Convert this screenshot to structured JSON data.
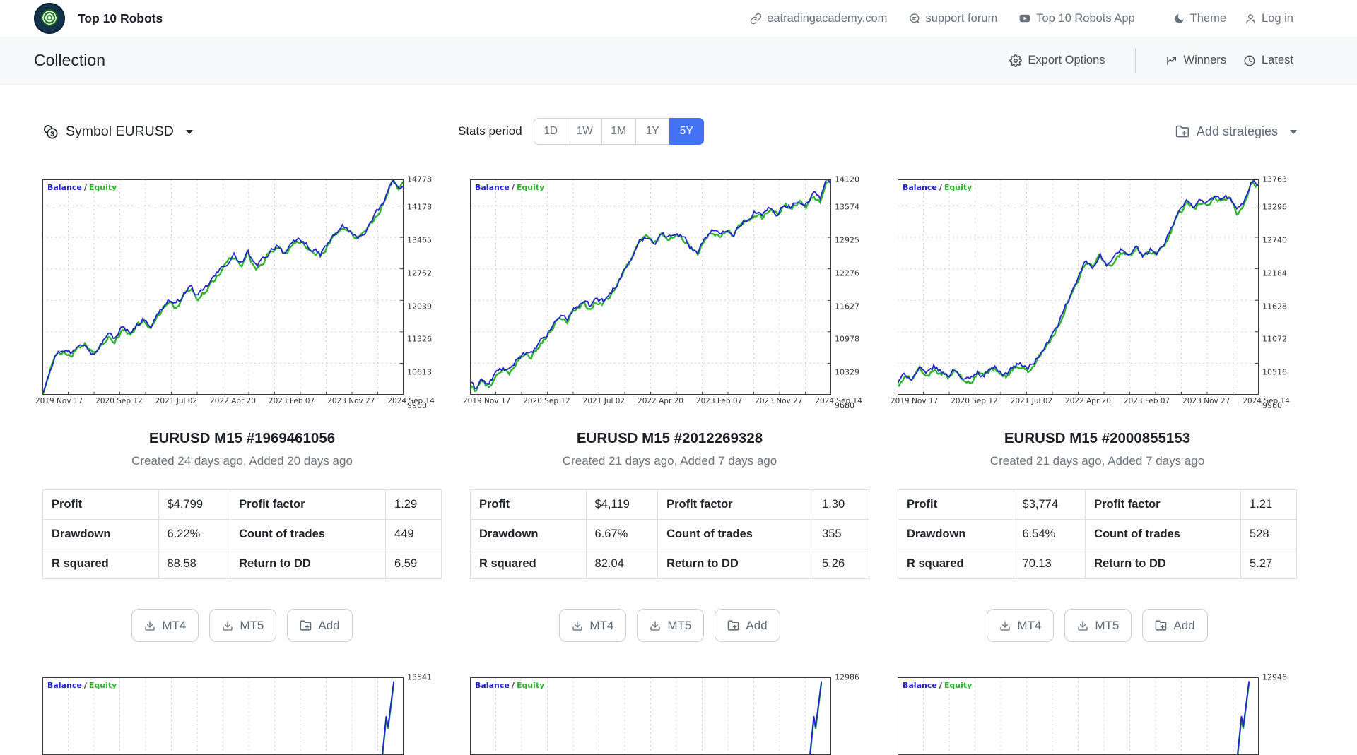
{
  "theme": {
    "accent": "#4372f4",
    "balance": "#2323cd",
    "equity": "#2db52d",
    "grid": "#d0d0d0",
    "frame": "#3a3a3a"
  },
  "header": {
    "brand": "Top 10 Robots",
    "nav": [
      {
        "label": "eatradingacademy.com",
        "icon": "link-icon"
      },
      {
        "label": "support forum",
        "icon": "chat-icon"
      },
      {
        "label": "Top 10 Robots App",
        "icon": "youtube-icon"
      }
    ],
    "theme_label": "Theme",
    "login_label": "Log in"
  },
  "toolbar": {
    "title": "Collection",
    "export_label": "Export Options",
    "winners_label": "Winners",
    "latest_label": "Latest"
  },
  "filters": {
    "symbol_label": "Symbol EURUSD",
    "stats_period_label": "Stats period",
    "periods": [
      "1D",
      "1W",
      "1M",
      "1Y",
      "5Y"
    ],
    "selected_period": "5Y",
    "add_strategies_label": "Add strategies"
  },
  "chart_legend": {
    "balance": "Balance",
    "separator": "/",
    "equity": "Equity"
  },
  "card_buttons": {
    "mt4": "MT4",
    "mt5": "MT5",
    "add": "Add"
  },
  "cards": [
    {
      "title": "EURUSD M15 #1969461056",
      "subtitle": "Created 24 days ago, Added 20 days ago",
      "stats": [
        {
          "c0": "Profit",
          "c1": "$4,799",
          "c2": "Profit factor",
          "c3": "1.29"
        },
        {
          "c0": "Drawdown",
          "c1": "6.22%",
          "c2": "Count of trades",
          "c3": "449"
        },
        {
          "c0": "R squared",
          "c1": "88.58",
          "c2": "Return to DD",
          "c3": "6.59"
        }
      ],
      "chart_data": {
        "type": "line",
        "legend": [
          "Balance",
          "Equity"
        ],
        "ylim": [
          9900,
          14778
        ],
        "yticks": [
          14778,
          14178,
          13465,
          12752,
          12039,
          11326,
          10613,
          9900
        ],
        "xlabels": [
          "2019 Nov 17",
          "2020 Sep 12",
          "2021 Jul 02",
          "2022 Apr 20",
          "2023 Feb 07",
          "2023 Nov 27",
          "2024 Sep 14"
        ],
        "series": [
          {
            "name": "Balance",
            "waypoints": [
              [
                0,
                9940
              ],
              [
                2,
                10500
              ],
              [
                4,
                10850
              ],
              [
                6,
                10950
              ],
              [
                8,
                10820
              ],
              [
                10,
                11050
              ],
              [
                12,
                11120
              ],
              [
                14,
                10830
              ],
              [
                16,
                11000
              ],
              [
                18,
                11280
              ],
              [
                20,
                11180
              ],
              [
                22,
                11420
              ],
              [
                24,
                11300
              ],
              [
                26,
                11480
              ],
              [
                28,
                11620
              ],
              [
                30,
                11480
              ],
              [
                33,
                11850
              ],
              [
                35,
                12060
              ],
              [
                37,
                11920
              ],
              [
                39,
                12180
              ],
              [
                41,
                12360
              ],
              [
                43,
                12120
              ],
              [
                45,
                12280
              ],
              [
                47,
                12520
              ],
              [
                49,
                12700
              ],
              [
                51,
                12880
              ],
              [
                53,
                13060
              ],
              [
                55,
                12870
              ],
              [
                57,
                13120
              ],
              [
                59,
                12780
              ],
              [
                61,
                12960
              ],
              [
                63,
                13140
              ],
              [
                65,
                13320
              ],
              [
                67,
                13120
              ],
              [
                69,
                13260
              ],
              [
                71,
                13420
              ],
              [
                73,
                13310
              ],
              [
                75,
                13160
              ],
              [
                77,
                13070
              ],
              [
                79,
                13320
              ],
              [
                81,
                13520
              ],
              [
                83,
                13720
              ],
              [
                85,
                13600
              ],
              [
                87,
                13430
              ],
              [
                89,
                13560
              ],
              [
                91,
                13820
              ],
              [
                93,
                14050
              ],
              [
                95,
                14350
              ],
              [
                97,
                14778
              ],
              [
                98.5,
                14540
              ],
              [
                100,
                14700
              ]
            ]
          }
        ]
      }
    },
    {
      "title": "EURUSD M15 #2012269328",
      "subtitle": "Created 21 days ago, Added 7 days ago",
      "stats": [
        {
          "c0": "Profit",
          "c1": "$4,119",
          "c2": "Profit factor",
          "c3": "1.30"
        },
        {
          "c0": "Drawdown",
          "c1": "6.67%",
          "c2": "Count of trades",
          "c3": "355"
        },
        {
          "c0": "R squared",
          "c1": "82.04",
          "c2": "Return to DD",
          "c3": "5.26"
        }
      ],
      "chart_data": {
        "type": "line",
        "legend": [
          "Balance",
          "Equity"
        ],
        "ylim": [
          9680,
          14120
        ],
        "yticks": [
          14120,
          13574,
          12925,
          12276,
          11627,
          10978,
          10329,
          9680
        ],
        "xlabels": [
          "2019 Nov 17",
          "2020 Sep 12",
          "2021 Jul 02",
          "2022 Apr 20",
          "2023 Feb 07",
          "2023 Nov 27",
          "2024 Sep 14"
        ],
        "series": [
          {
            "name": "Balance",
            "waypoints": [
              [
                0,
                9950
              ],
              [
                1.5,
                9790
              ],
              [
                3,
                10020
              ],
              [
                5,
                9870
              ],
              [
                7,
                10120
              ],
              [
                9,
                10220
              ],
              [
                11,
                10160
              ],
              [
                13,
                10420
              ],
              [
                15,
                10560
              ],
              [
                17,
                10500
              ],
              [
                19,
                10720
              ],
              [
                21,
                10880
              ],
              [
                23,
                11120
              ],
              [
                25,
                11320
              ],
              [
                27,
                11260
              ],
              [
                29,
                11460
              ],
              [
                31,
                11600
              ],
              [
                33,
                11500
              ],
              [
                35,
                11660
              ],
              [
                37,
                11600
              ],
              [
                39,
                11780
              ],
              [
                41,
                12020
              ],
              [
                43,
                12280
              ],
              [
                45,
                12540
              ],
              [
                47,
                12820
              ],
              [
                49,
                12960
              ],
              [
                51,
                12820
              ],
              [
                53,
                13020
              ],
              [
                55,
                12900
              ],
              [
                57,
                13060
              ],
              [
                59,
                12950
              ],
              [
                61,
                12720
              ],
              [
                63,
                12620
              ],
              [
                65,
                12920
              ],
              [
                67,
                13060
              ],
              [
                69,
                12960
              ],
              [
                71,
                13120
              ],
              [
                73,
                13010
              ],
              [
                75,
                13220
              ],
              [
                77,
                13320
              ],
              [
                79,
                13460
              ],
              [
                81,
                13360
              ],
              [
                83,
                13520
              ],
              [
                85,
                13420
              ],
              [
                87,
                13620
              ],
              [
                89,
                13560
              ],
              [
                91,
                13700
              ],
              [
                93,
                13620
              ],
              [
                95,
                13820
              ],
              [
                97,
                13740
              ],
              [
                98.5,
                14120
              ],
              [
                100,
                14080
              ]
            ]
          }
        ]
      }
    },
    {
      "title": "EURUSD M15 #2000855153",
      "subtitle": "Created 21 days ago, Added 7 days ago",
      "stats": [
        {
          "c0": "Profit",
          "c1": "$3,774",
          "c2": "Profit factor",
          "c3": "1.21"
        },
        {
          "c0": "Drawdown",
          "c1": "6.54%",
          "c2": "Count of trades",
          "c3": "528"
        },
        {
          "c0": "R squared",
          "c1": "70.13",
          "c2": "Return to DD",
          "c3": "5.27"
        }
      ],
      "chart_data": {
        "type": "line",
        "legend": [
          "Balance",
          "Equity"
        ],
        "ylim": [
          9960,
          13763
        ],
        "yticks": [
          13763,
          13296,
          12740,
          12184,
          11628,
          11072,
          10516,
          9960
        ],
        "xlabels": [
          "2019 Nov 17",
          "2020 Sep 12",
          "2021 Jul 02",
          "2022 Apr 20",
          "2023 Feb 07",
          "2023 Nov 27",
          "2024 Sep 14"
        ],
        "series": [
          {
            "name": "Balance",
            "waypoints": [
              [
                0,
                10160
              ],
              [
                2,
                10320
              ],
              [
                4,
                10260
              ],
              [
                6,
                10420
              ],
              [
                8,
                10300
              ],
              [
                10,
                10460
              ],
              [
                12,
                10360
              ],
              [
                14,
                10300
              ],
              [
                16,
                10420
              ],
              [
                18,
                10260
              ],
              [
                20,
                10210
              ],
              [
                22,
                10360
              ],
              [
                24,
                10310
              ],
              [
                26,
                10460
              ],
              [
                28,
                10410
              ],
              [
                30,
                10310
              ],
              [
                32,
                10460
              ],
              [
                34,
                10510
              ],
              [
                36,
                10410
              ],
              [
                38,
                10560
              ],
              [
                40,
                10720
              ],
              [
                42,
                10920
              ],
              [
                44,
                11140
              ],
              [
                46,
                11420
              ],
              [
                48,
                11720
              ],
              [
                50,
                12020
              ],
              [
                52,
                12320
              ],
              [
                54,
                12210
              ],
              [
                56,
                12460
              ],
              [
                58,
                12220
              ],
              [
                60,
                12360
              ],
              [
                62,
                12520
              ],
              [
                64,
                12420
              ],
              [
                66,
                12560
              ],
              [
                68,
                12410
              ],
              [
                70,
                12510
              ],
              [
                72,
                12460
              ],
              [
                74,
                12620
              ],
              [
                76,
                12920
              ],
              [
                78,
                13220
              ],
              [
                80,
                13360
              ],
              [
                82,
                13300
              ],
              [
                84,
                13410
              ],
              [
                86,
                13350
              ],
              [
                88,
                13460
              ],
              [
                90,
                13400
              ],
              [
                92,
                13450
              ],
              [
                94,
                13210
              ],
              [
                96,
                13360
              ],
              [
                98,
                13763
              ],
              [
                100,
                13690
              ]
            ]
          }
        ]
      }
    }
  ],
  "partial_cards": [
    {
      "top_value": "13541"
    },
    {
      "top_value": "12986"
    },
    {
      "top_value": "12946"
    }
  ]
}
